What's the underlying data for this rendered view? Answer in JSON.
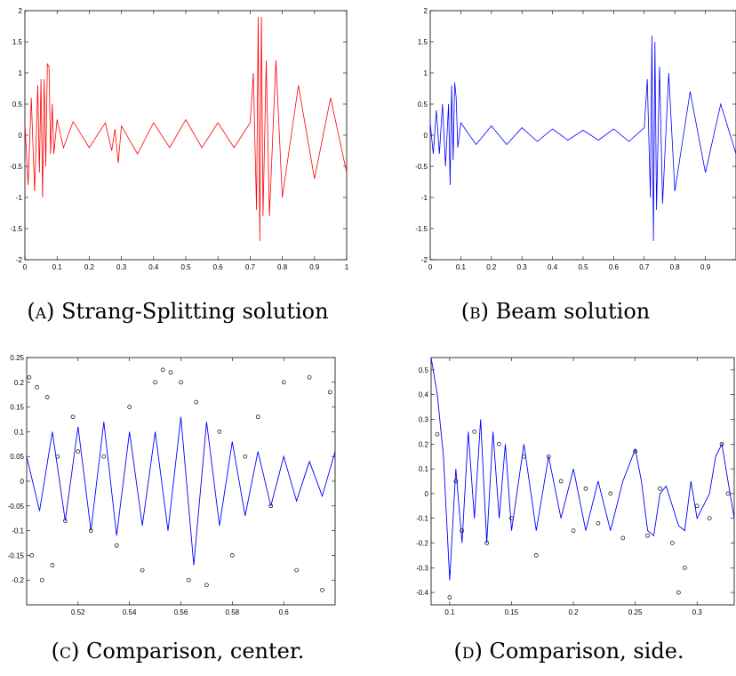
{
  "captions": {
    "a": {
      "letter": "(a)",
      "text": "Strang-Splitting solution"
    },
    "b": {
      "letter": "(b)",
      "text": "Beam solution"
    },
    "c": {
      "letter": "(c)",
      "text": "Comparison, center."
    },
    "d": {
      "letter": "(d)",
      "text": "Comparison, side."
    }
  },
  "chart_data": [
    {
      "id": "a",
      "type": "line",
      "title": "",
      "color": "#ff0000",
      "xlim": [
        0,
        1
      ],
      "ylim": [
        -2,
        2
      ],
      "xticks": [
        "0",
        "0.1",
        "0.2",
        "0.3",
        "0.4",
        "0.5",
        "0.6",
        "0.7",
        "0.8",
        "0.9",
        "1"
      ],
      "yticks": [
        "-2",
        "-1.5",
        "-1",
        "-0.5",
        "0",
        "0.5",
        "1",
        "1.5",
        "2"
      ],
      "series": [
        {
          "x": [
            0,
            0.01,
            0.02,
            0.03,
            0.04,
            0.045,
            0.05,
            0.055,
            0.06,
            0.065,
            0.07,
            0.075,
            0.08,
            0.085,
            0.09,
            0.1,
            0.12,
            0.15,
            0.2,
            0.25,
            0.27,
            0.28,
            0.29,
            0.3,
            0.35,
            0.4,
            0.45,
            0.5,
            0.55,
            0.6,
            0.65,
            0.7,
            0.71,
            0.72,
            0.725,
            0.73,
            0.735,
            0.74,
            0.75,
            0.76,
            0.78,
            0.8,
            0.85,
            0.9,
            0.95,
            1
          ],
          "y": [
            0.2,
            -0.8,
            0.6,
            -0.9,
            0.8,
            -0.6,
            0.9,
            -1.0,
            0.9,
            -0.5,
            1.15,
            1.1,
            -0.3,
            0.5,
            -0.3,
            0.25,
            -0.2,
            0.22,
            -0.2,
            0.2,
            -0.25,
            0.1,
            -0.45,
            0.15,
            -0.3,
            0.2,
            -0.2,
            0.25,
            -0.2,
            0.2,
            -0.2,
            0.2,
            1.0,
            -1.2,
            1.9,
            -1.7,
            1.9,
            -1.3,
            1.2,
            -1.3,
            1.2,
            -1.0,
            0.8,
            -0.7,
            0.6,
            -0.6
          ]
        }
      ]
    },
    {
      "id": "b",
      "type": "line",
      "title": "",
      "color": "#0000ff",
      "xlim": [
        0,
        1
      ],
      "ylim": [
        -2,
        2
      ],
      "xticks": [
        "0",
        "0.1",
        "0.2",
        "0.3",
        "0.4",
        "0.5",
        "0.6",
        "0.7",
        "0.8",
        "0.9"
      ],
      "yticks": [
        "-2",
        "-1.5",
        "-1",
        "-0.5",
        "0",
        "0.5",
        "1",
        "1.5",
        "2"
      ],
      "series": [
        {
          "x": [
            0,
            0.01,
            0.02,
            0.03,
            0.04,
            0.05,
            0.06,
            0.065,
            0.07,
            0.075,
            0.08,
            0.085,
            0.09,
            0.1,
            0.15,
            0.2,
            0.25,
            0.3,
            0.35,
            0.4,
            0.45,
            0.5,
            0.55,
            0.6,
            0.65,
            0.7,
            0.71,
            0.72,
            0.725,
            0.73,
            0.735,
            0.74,
            0.75,
            0.76,
            0.78,
            0.8,
            0.85,
            0.9,
            0.95,
            1
          ],
          "y": [
            0.2,
            -0.3,
            0.4,
            -0.3,
            0.5,
            -0.5,
            0.5,
            -0.8,
            0.8,
            -0.4,
            0.85,
            0.6,
            -0.2,
            0.2,
            -0.15,
            0.15,
            -0.15,
            0.12,
            -0.1,
            0.1,
            -0.08,
            0.08,
            -0.08,
            0.1,
            -0.1,
            0.12,
            0.9,
            -1.0,
            1.6,
            -1.7,
            1.5,
            -1.2,
            1.1,
            -1.1,
            1.0,
            -0.9,
            0.7,
            -0.6,
            0.5,
            -0.3
          ]
        }
      ]
    },
    {
      "id": "c",
      "type": "scatter",
      "title": "",
      "line_color": "#0000ff",
      "marker_color": "#000000",
      "xlim": [
        0.5,
        0.62
      ],
      "ylim": [
        -0.25,
        0.25
      ],
      "xticks": [
        "0.52",
        "0.54",
        "0.56",
        "0.58",
        "0.6"
      ],
      "yticks": [
        "-0.2",
        "-0.15",
        "-0.1",
        "-0.05",
        "0",
        "0.05",
        "0.1",
        "0.15",
        "0.2",
        "0.25"
      ],
      "line_series": {
        "x": [
          0.5,
          0.505,
          0.51,
          0.515,
          0.52,
          0.525,
          0.53,
          0.535,
          0.54,
          0.545,
          0.55,
          0.555,
          0.56,
          0.565,
          0.57,
          0.575,
          0.58,
          0.585,
          0.59,
          0.595,
          0.6,
          0.605,
          0.61,
          0.615,
          0.62
        ],
        "y": [
          0.05,
          -0.06,
          0.1,
          -0.08,
          0.11,
          -0.1,
          0.12,
          -0.11,
          0.1,
          -0.09,
          0.1,
          -0.1,
          0.13,
          -0.17,
          0.12,
          -0.09,
          0.08,
          -0.07,
          0.06,
          -0.05,
          0.05,
          -0.04,
          0.04,
          -0.03,
          0.06
        ]
      },
      "points": {
        "x": [
          0.501,
          0.502,
          0.504,
          0.506,
          0.508,
          0.51,
          0.512,
          0.515,
          0.518,
          0.52,
          0.525,
          0.53,
          0.535,
          0.54,
          0.545,
          0.55,
          0.553,
          0.556,
          0.56,
          0.563,
          0.566,
          0.57,
          0.575,
          0.58,
          0.585,
          0.59,
          0.595,
          0.6,
          0.605,
          0.61,
          0.615,
          0.618
        ],
        "y": [
          0.21,
          -0.15,
          0.19,
          -0.2,
          0.17,
          -0.17,
          0.05,
          -0.08,
          0.13,
          0.06,
          -0.1,
          0.05,
          -0.13,
          0.15,
          -0.18,
          0.2,
          0.225,
          0.22,
          0.2,
          -0.2,
          0.16,
          -0.21,
          0.1,
          -0.15,
          0.05,
          0.13,
          -0.05,
          0.2,
          -0.18,
          0.21,
          -0.22,
          0.18
        ]
      }
    },
    {
      "id": "d",
      "type": "scatter",
      "title": "",
      "line_color": "#0000ff",
      "marker_color": "#000000",
      "xlim": [
        0.085,
        0.33
      ],
      "ylim": [
        -0.45,
        0.55
      ],
      "xticks": [
        "0.1",
        "0.15",
        "0.2",
        "0.25",
        "0.3"
      ],
      "yticks": [
        "-0.4",
        "-0.3",
        "-0.2",
        "-0.1",
        "0",
        "0.1",
        "0.2",
        "0.3",
        "0.4",
        "0.5"
      ],
      "line_series": {
        "x": [
          0.085,
          0.09,
          0.095,
          0.1,
          0.105,
          0.11,
          0.115,
          0.12,
          0.125,
          0.13,
          0.135,
          0.14,
          0.145,
          0.15,
          0.16,
          0.17,
          0.18,
          0.19,
          0.2,
          0.21,
          0.22,
          0.23,
          0.24,
          0.25,
          0.255,
          0.26,
          0.265,
          0.27,
          0.275,
          0.28,
          0.285,
          0.29,
          0.295,
          0.3,
          0.305,
          0.31,
          0.315,
          0.32,
          0.325,
          0.33
        ],
        "y": [
          0.55,
          0.4,
          0.15,
          -0.35,
          0.1,
          -0.2,
          0.25,
          -0.1,
          0.3,
          -0.2,
          0.25,
          -0.1,
          0.2,
          -0.15,
          0.2,
          -0.15,
          0.15,
          -0.1,
          0.1,
          -0.15,
          0.05,
          -0.15,
          0.05,
          0.18,
          0.05,
          -0.15,
          -0.17,
          0.0,
          0.03,
          -0.05,
          -0.13,
          -0.15,
          0.05,
          -0.1,
          -0.05,
          0.0,
          0.15,
          0.2,
          0.05,
          -0.1
        ]
      },
      "points": {
        "x": [
          0.09,
          0.1,
          0.105,
          0.11,
          0.12,
          0.13,
          0.14,
          0.15,
          0.16,
          0.17,
          0.18,
          0.19,
          0.2,
          0.21,
          0.22,
          0.23,
          0.24,
          0.25,
          0.26,
          0.27,
          0.28,
          0.285,
          0.29,
          0.3,
          0.31,
          0.32,
          0.325
        ],
        "y": [
          0.24,
          -0.42,
          0.05,
          -0.15,
          0.25,
          -0.2,
          0.2,
          -0.1,
          0.15,
          -0.25,
          0.15,
          0.05,
          -0.15,
          0.02,
          -0.12,
          0.0,
          -0.18,
          0.17,
          -0.17,
          0.02,
          -0.2,
          -0.4,
          -0.3,
          -0.05,
          -0.1,
          0.2,
          0.0
        ]
      }
    }
  ]
}
